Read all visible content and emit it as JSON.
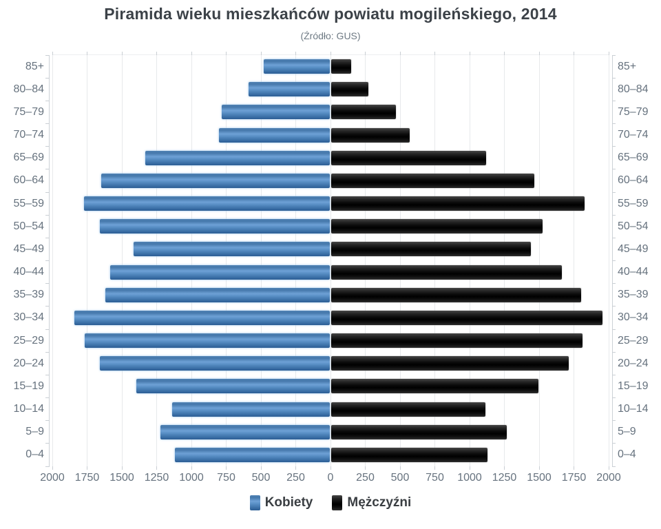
{
  "header": {
    "title": "Piramida wieku mieszkańców powiatu mogileńskiego, 2014",
    "subtitle": "(Źródło: GUS)"
  },
  "chart_data": {
    "type": "bar",
    "variant": "population-pyramid",
    "title": "Piramida wieku mieszkańców powiatu mogileńskiego, 2014",
    "subtitle": "(Źródło: GUS)",
    "categories": [
      "85+",
      "80–84",
      "75–79",
      "70–74",
      "65–69",
      "60–64",
      "55–59",
      "50–54",
      "45–49",
      "40–44",
      "35–39",
      "30–34",
      "25–29",
      "20–24",
      "15–19",
      "10–14",
      "5–9",
      "0–4"
    ],
    "series": [
      {
        "name": "Kobiety",
        "side": "left",
        "color": "#4a80b6",
        "values": [
          475,
          585,
          775,
          795,
          1325,
          1645,
          1765,
          1655,
          1410,
          1580,
          1615,
          1835,
          1760,
          1655,
          1390,
          1135,
          1220,
          1115
        ]
      },
      {
        "name": "Mężczyźni",
        "side": "right",
        "color": "#141414",
        "values": [
          145,
          265,
          465,
          565,
          1115,
          1460,
          1820,
          1520,
          1435,
          1660,
          1795,
          1950,
          1805,
          1710,
          1490,
          1110,
          1260,
          1125
        ]
      }
    ],
    "xlim": [
      0,
      2000
    ],
    "x_tick_step": 250,
    "x_tick_labels": [
      "2000",
      "1750",
      "1500",
      "1250",
      "1000",
      "750",
      "500",
      "250",
      "0",
      "250",
      "500",
      "750",
      "1000",
      "1250",
      "1500",
      "1750",
      "2000"
    ],
    "y_axis_labels_both_sides": true,
    "grid": true,
    "background": "#ffffff",
    "legend_position": "bottom"
  },
  "legend": {
    "items": [
      {
        "label": "Kobiety",
        "color": "#4a80b6"
      },
      {
        "label": "Mężczyźni",
        "color": "#141414"
      }
    ]
  }
}
